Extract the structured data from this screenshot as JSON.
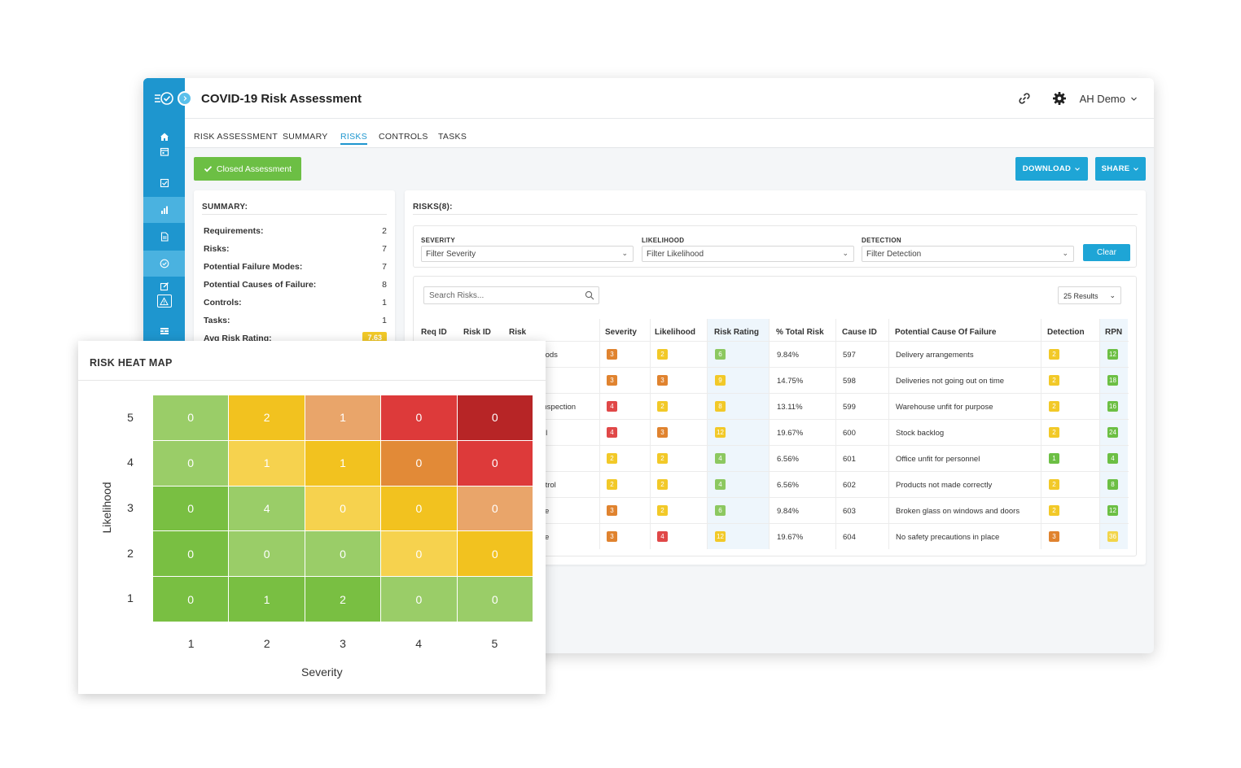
{
  "app": {
    "title": "COVID-19 Risk Assessment",
    "user": "AH Demo"
  },
  "tabs": [
    {
      "label": "RISK ASSESSMENT",
      "active": false
    },
    {
      "label": "SUMMARY",
      "active": false
    },
    {
      "label": "RISKS",
      "active": true
    },
    {
      "label": "CONTROLS",
      "active": false
    },
    {
      "label": "TASKS",
      "active": false
    }
  ],
  "status_button": "Closed Assessment",
  "header_buttons": {
    "download": "DOWNLOAD",
    "share": "SHARE"
  },
  "summary": {
    "title": "SUMMARY:",
    "rows": [
      {
        "label": "Requirements:",
        "value": "2"
      },
      {
        "label": "Risks:",
        "value": "7"
      },
      {
        "label": "Potential Failure Modes:",
        "value": "7"
      },
      {
        "label": "Potential Causes of Failure:",
        "value": "8"
      },
      {
        "label": "Controls:",
        "value": "1"
      },
      {
        "label": "Tasks:",
        "value": "1"
      },
      {
        "label": "Avg Risk Rating:",
        "value": "7.63"
      }
    ]
  },
  "risks": {
    "title": "RISKS(8):",
    "filters": {
      "severity": {
        "label": "SEVERITY",
        "placeholder": "Filter Severity"
      },
      "likelihood": {
        "label": "LIKELIHOOD",
        "placeholder": "Filter Likelihood"
      },
      "detection": {
        "label": "DETECTION",
        "placeholder": "Filter Detection"
      },
      "clear": "Clear"
    },
    "search_placeholder": "Search Risks...",
    "results": "25 Results",
    "columns": [
      "Req ID",
      "Risk ID",
      "Risk",
      "Severity",
      "Likelihood",
      "Risk Rating",
      "% Total Risk",
      "Cause ID",
      "Potential Cause Of Failure",
      "Detection",
      "RPN"
    ],
    "rows": [
      {
        "risk": "goods",
        "severity": "3",
        "likelihood": "2",
        "rating": "6",
        "pct": "9.84%",
        "cause_id": "597",
        "cause": "Delivery arrangements",
        "detection": "2",
        "rpn": "12"
      },
      {
        "risk": "",
        "severity": "3",
        "likelihood": "3",
        "rating": "9",
        "pct": "14.75%",
        "cause_id": "598",
        "cause": "Deliveries not going out on time",
        "detection": "2",
        "rpn": "18"
      },
      {
        "risk": "; inspection",
        "severity": "4",
        "likelihood": "2",
        "rating": "8",
        "pct": "13.11%",
        "cause_id": "599",
        "cause": "Warehouse unfit for purpose",
        "detection": "2",
        "rpn": "16"
      },
      {
        "risk": "trol",
        "severity": "4",
        "likelihood": "3",
        "rating": "12",
        "pct": "19.67%",
        "cause_id": "600",
        "cause": "Stock backlog",
        "detection": "2",
        "rpn": "24"
      },
      {
        "risk": "",
        "severity": "2",
        "likelihood": "2",
        "rating": "4",
        "pct": "6.56%",
        "cause_id": "601",
        "cause": "Office unfit for personnel",
        "detection": "1",
        "rpn": "4"
      },
      {
        "risk": "ontrol",
        "severity": "2",
        "likelihood": "2",
        "rating": "4",
        "pct": "6.56%",
        "cause_id": "602",
        "cause": "Products not made correctly",
        "detection": "2",
        "rpn": "8"
      },
      {
        "risk": "nce",
        "severity": "3",
        "likelihood": "2",
        "rating": "6",
        "pct": "9.84%",
        "cause_id": "603",
        "cause": "Broken glass on windows and doors",
        "detection": "2",
        "rpn": "12"
      },
      {
        "risk": "nce",
        "severity": "3",
        "likelihood": "4",
        "rating": "12",
        "pct": "19.67%",
        "cause_id": "604",
        "cause": "No safety precautions in place",
        "detection": "3",
        "rpn": "36"
      }
    ]
  },
  "badge_colors": {
    "1": "#6cbf44",
    "2": "#f2c928",
    "3": "#e0832f",
    "4": "#e04848",
    "rating_low": "#8cc860",
    "rating_mid": "#f2c928",
    "rpn_low": "#6cbf44",
    "rpn_mid": "#f2d54a"
  },
  "heatmap": {
    "title": "RISK HEAT MAP",
    "x_title": "Severity",
    "y_title": "Likelihood",
    "x_ticks": [
      "1",
      "2",
      "3",
      "4",
      "5"
    ],
    "y_ticks": [
      "5",
      "4",
      "3",
      "2",
      "1"
    ],
    "cells": [
      [
        {
          "v": "0",
          "c": "#9acd68"
        },
        {
          "v": "2",
          "c": "#f2c21f"
        },
        {
          "v": "1",
          "c": "#e9a56a"
        },
        {
          "v": "0",
          "c": "#dd3a3a"
        },
        {
          "v": "0",
          "c": "#b72526"
        }
      ],
      [
        {
          "v": "0",
          "c": "#9acd68"
        },
        {
          "v": "1",
          "c": "#f6d24e"
        },
        {
          "v": "1",
          "c": "#f2c21f"
        },
        {
          "v": "0",
          "c": "#e28a37"
        },
        {
          "v": "0",
          "c": "#dd3a3a"
        }
      ],
      [
        {
          "v": "0",
          "c": "#79bf42"
        },
        {
          "v": "4",
          "c": "#9acd68"
        },
        {
          "v": "0",
          "c": "#f6d24e"
        },
        {
          "v": "0",
          "c": "#f2c21f"
        },
        {
          "v": "0",
          "c": "#e9a56a"
        }
      ],
      [
        {
          "v": "0",
          "c": "#79bf42"
        },
        {
          "v": "0",
          "c": "#9acd68"
        },
        {
          "v": "0",
          "c": "#9acd68"
        },
        {
          "v": "0",
          "c": "#f6d24e"
        },
        {
          "v": "0",
          "c": "#f2c21f"
        }
      ],
      [
        {
          "v": "0",
          "c": "#79bf42"
        },
        {
          "v": "1",
          "c": "#79bf42"
        },
        {
          "v": "2",
          "c": "#79bf42"
        },
        {
          "v": "0",
          "c": "#9acd68"
        },
        {
          "v": "0",
          "c": "#9acd68"
        }
      ]
    ]
  }
}
